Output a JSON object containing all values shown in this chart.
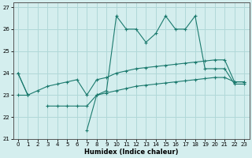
{
  "x": [
    0,
    1,
    2,
    3,
    4,
    5,
    6,
    7,
    8,
    9,
    10,
    11,
    12,
    13,
    14,
    15,
    16,
    17,
    18,
    19,
    20,
    21,
    22,
    23
  ],
  "line_jagged": [
    24.0,
    23.0,
    null,
    null,
    null,
    null,
    null,
    21.4,
    23.0,
    23.2,
    26.6,
    26.0,
    26.0,
    25.4,
    25.8,
    26.6,
    26.0,
    26.0,
    26.6,
    24.2,
    24.2,
    24.2,
    23.5,
    23.5
  ],
  "line_upper": [
    24.0,
    23.0,
    23.2,
    23.4,
    23.5,
    23.6,
    23.7,
    23.0,
    23.7,
    23.8,
    24.0,
    24.1,
    24.2,
    24.25,
    24.3,
    24.35,
    24.4,
    24.45,
    24.5,
    24.55,
    24.6,
    24.6,
    23.6,
    23.6
  ],
  "line_lower": [
    23.0,
    23.0,
    null,
    22.5,
    22.5,
    22.5,
    22.5,
    22.5,
    23.0,
    23.1,
    23.2,
    23.3,
    23.4,
    23.45,
    23.5,
    23.55,
    23.6,
    23.65,
    23.7,
    23.75,
    23.8,
    23.8,
    23.6,
    23.6
  ],
  "color": "#1b7a6e",
  "bg_color": "#d4eeee",
  "grid_color": "#b0d8d8",
  "ylim": [
    21.0,
    27.2
  ],
  "xlim": [
    -0.5,
    23.5
  ],
  "yticks": [
    21,
    22,
    23,
    24,
    25,
    26,
    27
  ],
  "xticks": [
    0,
    1,
    2,
    3,
    4,
    5,
    6,
    7,
    8,
    9,
    10,
    11,
    12,
    13,
    14,
    15,
    16,
    17,
    18,
    19,
    20,
    21,
    22,
    23
  ],
  "xlabel": "Humidex (Indice chaleur)"
}
